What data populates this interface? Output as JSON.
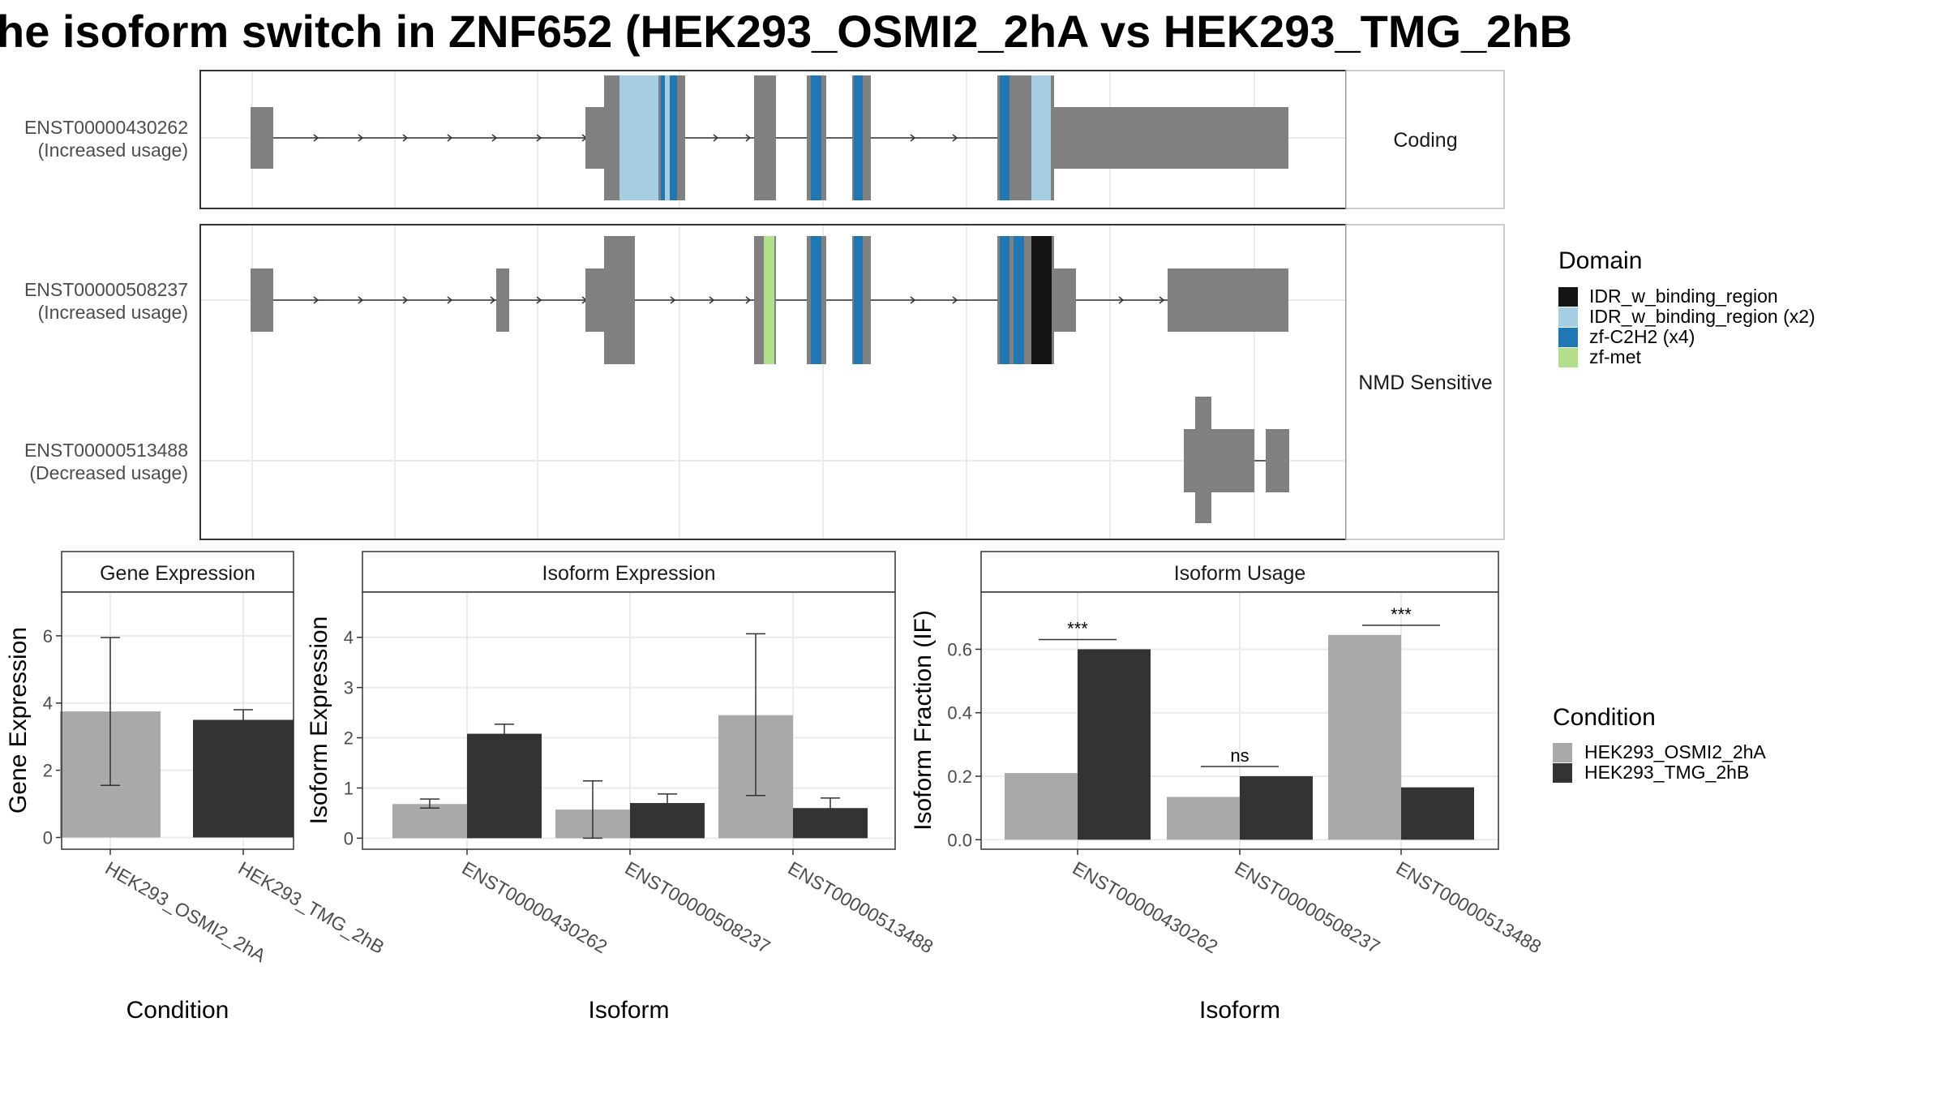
{
  "title": "he isoform switch in ZNF652 (HEK293_OSMI2_2hA vs HEK293_TMG_2hB",
  "colors": {
    "exon": "#808080",
    "condition_a": "#A9A9A9",
    "condition_b": "#333333",
    "panel_border": "#333333",
    "strip_border": "#BBBBBB",
    "grid": "#EBEBEB"
  },
  "structure": {
    "facets": [
      "Coding",
      "NMD Sensitive"
    ],
    "transcripts": [
      {
        "id": "ENST00000430262",
        "usage": "(Increased usage)",
        "facet": "Coding"
      },
      {
        "id": "ENST00000508237",
        "usage": "(Increased usage)",
        "facet": "NMD Sensitive"
      },
      {
        "id": "ENST00000513488",
        "usage": "(Decreased usage)",
        "facet": "NMD Sensitive"
      }
    ],
    "domain_legend": {
      "title": "Domain",
      "items": [
        {
          "label": "IDR_w_binding_region",
          "color": "#141414"
        },
        {
          "label": "IDR_w_binding_region (x2)",
          "color": "#A6CEE3"
        },
        {
          "label": "zf-C2H2 (x4)",
          "color": "#1F78B4"
        },
        {
          "label": "zf-met",
          "color": "#B2DF8A"
        }
      ]
    }
  },
  "condition_legend": {
    "title": "Condition",
    "items": [
      {
        "label": "HEK293_OSMI2_2hA",
        "color": "#A9A9A9"
      },
      {
        "label": "HEK293_TMG_2hB",
        "color": "#333333"
      }
    ]
  },
  "chart_data": [
    {
      "type": "bar",
      "title": "Gene Expression",
      "xlabel": "Condition",
      "ylabel": "Gene Expression",
      "ylim": [
        -0.35,
        7.3
      ],
      "yticks": [
        0,
        2,
        4,
        6
      ],
      "categories": [
        "HEK293_OSMI2_2hA",
        "HEK293_TMG_2hB"
      ],
      "values": [
        3.75,
        3.5
      ],
      "error_low": [
        1.55,
        3.2
      ],
      "error_high": [
        5.95,
        3.8
      ]
    },
    {
      "type": "bar",
      "title": "Isoform Expression",
      "xlabel": "Isoform",
      "ylabel": "Isoform Expression",
      "ylim": [
        -0.22,
        4.9
      ],
      "yticks": [
        0,
        1,
        2,
        3,
        4
      ],
      "categories": [
        "ENST00000430262",
        "ENST00000508237",
        "ENST00000513488"
      ],
      "series": [
        {
          "name": "HEK293_OSMI2_2hA",
          "values": [
            0.68,
            0.57,
            2.45
          ],
          "error_low": [
            0.6,
            0.0,
            0.85
          ],
          "error_high": [
            0.78,
            1.14,
            4.07
          ]
        },
        {
          "name": "HEK293_TMG_2hB",
          "values": [
            2.08,
            0.7,
            0.6
          ],
          "error_low": [
            1.92,
            0.5,
            0.42
          ],
          "error_high": [
            2.27,
            0.88,
            0.8
          ]
        }
      ]
    },
    {
      "type": "bar",
      "title": "Isoform Usage",
      "xlabel": "Isoform",
      "ylabel": "Isoform Fraction (IF)",
      "ylim": [
        -0.03,
        0.78
      ],
      "yticks": [
        0.0,
        0.2,
        0.4,
        0.6
      ],
      "ytick_labels": [
        "0.0",
        "0.2",
        "0.4",
        "0.6"
      ],
      "categories": [
        "ENST00000430262",
        "ENST00000508237",
        "ENST00000513488"
      ],
      "series": [
        {
          "name": "HEK293_OSMI2_2hA",
          "values": [
            0.21,
            0.135,
            0.645
          ]
        },
        {
          "name": "HEK293_TMG_2hB",
          "values": [
            0.6,
            0.2,
            0.165
          ]
        }
      ],
      "significance": [
        "***",
        "ns",
        "***"
      ]
    }
  ]
}
